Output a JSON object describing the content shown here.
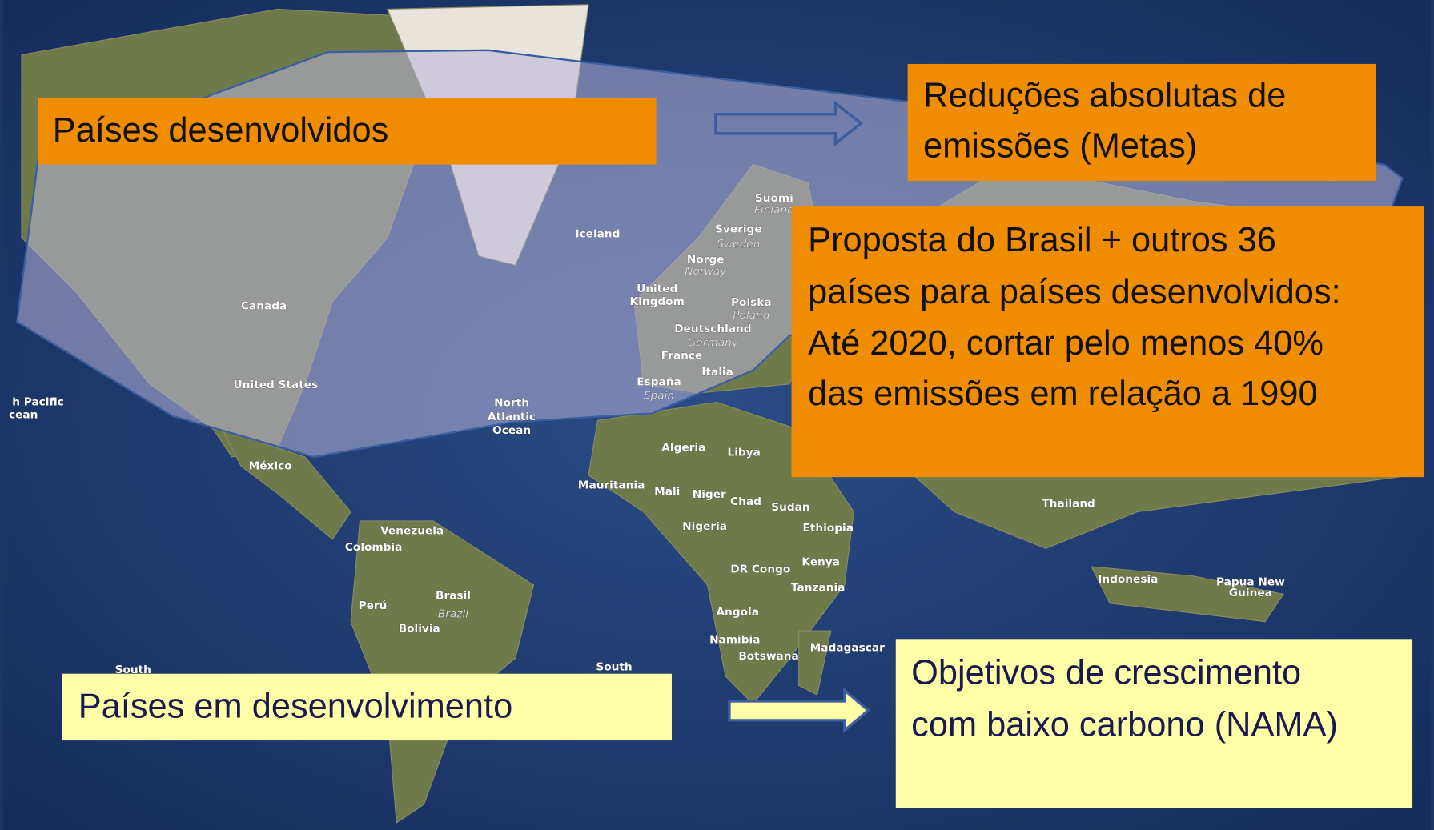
{
  "boxes": {
    "developed": "Países desenvolvidos",
    "reductions": [
      "Reduções absolutas de",
      "emissões (Metas)"
    ],
    "proposal": [
      "Proposta do Brasil + outros 36",
      "países para países desenvolvidos:",
      "Até 2020, cortar pelo menos 40%",
      "das emissões em relação a 1990"
    ],
    "developing": "Países em desenvolvimento",
    "objectives": [
      "Objetivos de crescimento",
      "com baixo carbono (NAMA)"
    ]
  },
  "map_labels": [
    "Canada",
    "United States",
    "México",
    "Iceland",
    "Suomi",
    "Finland",
    "Sverige",
    "Sweden",
    "Norge",
    "Norway",
    "United",
    "Kingdom",
    "Polska",
    "Poland",
    "Deutschland",
    "Germany",
    "France",
    "España",
    "Spain",
    "Italia",
    "North",
    "Atlantic",
    "Ocean",
    "h Pacific",
    "cean",
    "Algeria",
    "Libya",
    "Mauritania",
    "Mali",
    "Niger",
    "Chad",
    "Sudan",
    "Nigeria",
    "Ethiopia",
    "Kenya",
    "DR Congo",
    "Tanzania",
    "Angola",
    "Namibia",
    "Botswana",
    "Madagascar",
    "Venezuela",
    "Colombia",
    "Brasil",
    "Brazil",
    "Perú",
    "Bolivia",
    "South",
    "South",
    "Thailand",
    "Indonesia",
    "Papua New",
    "Guinea"
  ]
}
